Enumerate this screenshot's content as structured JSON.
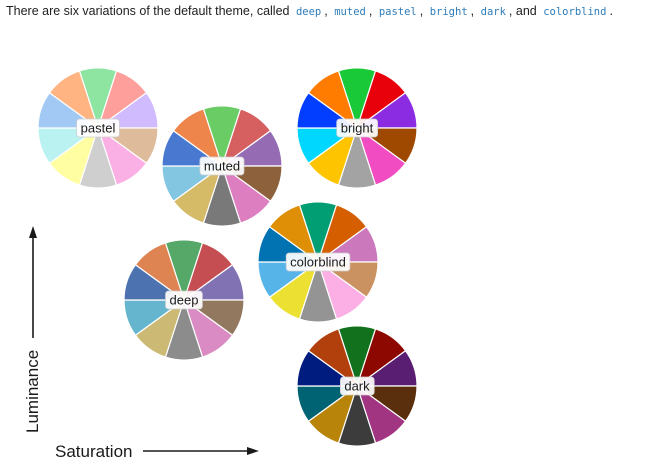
{
  "intro": {
    "text_start": "There are six variations of the default theme, called",
    "names": [
      "deep",
      "muted",
      "pastel",
      "bright",
      "dark",
      "colorblind"
    ],
    "sep": ",",
    "and": ", and",
    "end": "."
  },
  "axes": {
    "y_label": "Luminance",
    "x_label": "Saturation"
  },
  "palettes": [
    {
      "name": "pastel",
      "colors": [
        "#a1c9f4",
        "#ffb482",
        "#8de5a1",
        "#ff9f9b",
        "#d0bbff",
        "#debb9b",
        "#fab0e4",
        "#cfcfcf",
        "#fffea3",
        "#b9f2f0"
      ]
    },
    {
      "name": "muted",
      "colors": [
        "#4878d0",
        "#ee854a",
        "#6acc64",
        "#d65f5f",
        "#956cb4",
        "#8c613c",
        "#dc7ec0",
        "#797979",
        "#d5bb67",
        "#82c6e2"
      ]
    },
    {
      "name": "bright",
      "colors": [
        "#023eff",
        "#ff7c00",
        "#1ac938",
        "#e8000b",
        "#8b2be2",
        "#9f4800",
        "#f14cc1",
        "#a3a3a3",
        "#ffc400",
        "#00d7ff"
      ]
    },
    {
      "name": "colorblind",
      "colors": [
        "#0173b2",
        "#de8f05",
        "#029e73",
        "#d55e00",
        "#cc78bc",
        "#ca9161",
        "#fbafe4",
        "#949494",
        "#ece133",
        "#56b4e9"
      ]
    },
    {
      "name": "deep",
      "colors": [
        "#4c72b0",
        "#dd8452",
        "#55a868",
        "#c44e52",
        "#8172b3",
        "#937860",
        "#da8bc3",
        "#8c8c8c",
        "#ccb974",
        "#64b5cd"
      ]
    },
    {
      "name": "dark",
      "colors": [
        "#001c7f",
        "#b1400d",
        "#12711c",
        "#8c0800",
        "#591e71",
        "#592f0d",
        "#a23582",
        "#3c3c3c",
        "#b8850a",
        "#006374"
      ]
    }
  ]
}
